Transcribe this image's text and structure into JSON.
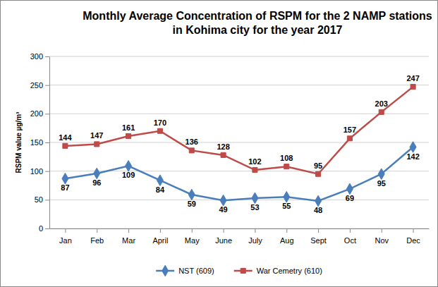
{
  "chart_data": {
    "type": "line",
    "title": "Monthly Average Concentration of RSPM for the 2 NAMP stations in Kohima city for the year 2017",
    "y_label": "RSPM value µg/m³",
    "categories": [
      "Jan",
      "Feb",
      "Mar",
      "April",
      "May",
      "June",
      "July",
      "Aug",
      "Sept",
      "Oct",
      "Nov",
      "Dec"
    ],
    "series": [
      {
        "name": "NST (609)",
        "color": "#4a7ebb",
        "marker": "diamond",
        "line_style": "solid",
        "values": [
          87,
          96,
          109,
          84,
          59,
          49,
          53,
          55,
          48,
          69,
          95,
          142
        ]
      },
      {
        "name": "War Cemetry (610)",
        "color": "#be4b48",
        "marker": "square",
        "line_style": "solid",
        "values": [
          144,
          147,
          161,
          170,
          136,
          128,
          102,
          108,
          95,
          157,
          203,
          247
        ]
      }
    ],
    "ylim": [
      0,
      300
    ],
    "yticks": [
      0,
      50,
      100,
      150,
      200,
      250,
      300
    ],
    "grid": true,
    "legend": "bottom",
    "data_labels": true
  }
}
